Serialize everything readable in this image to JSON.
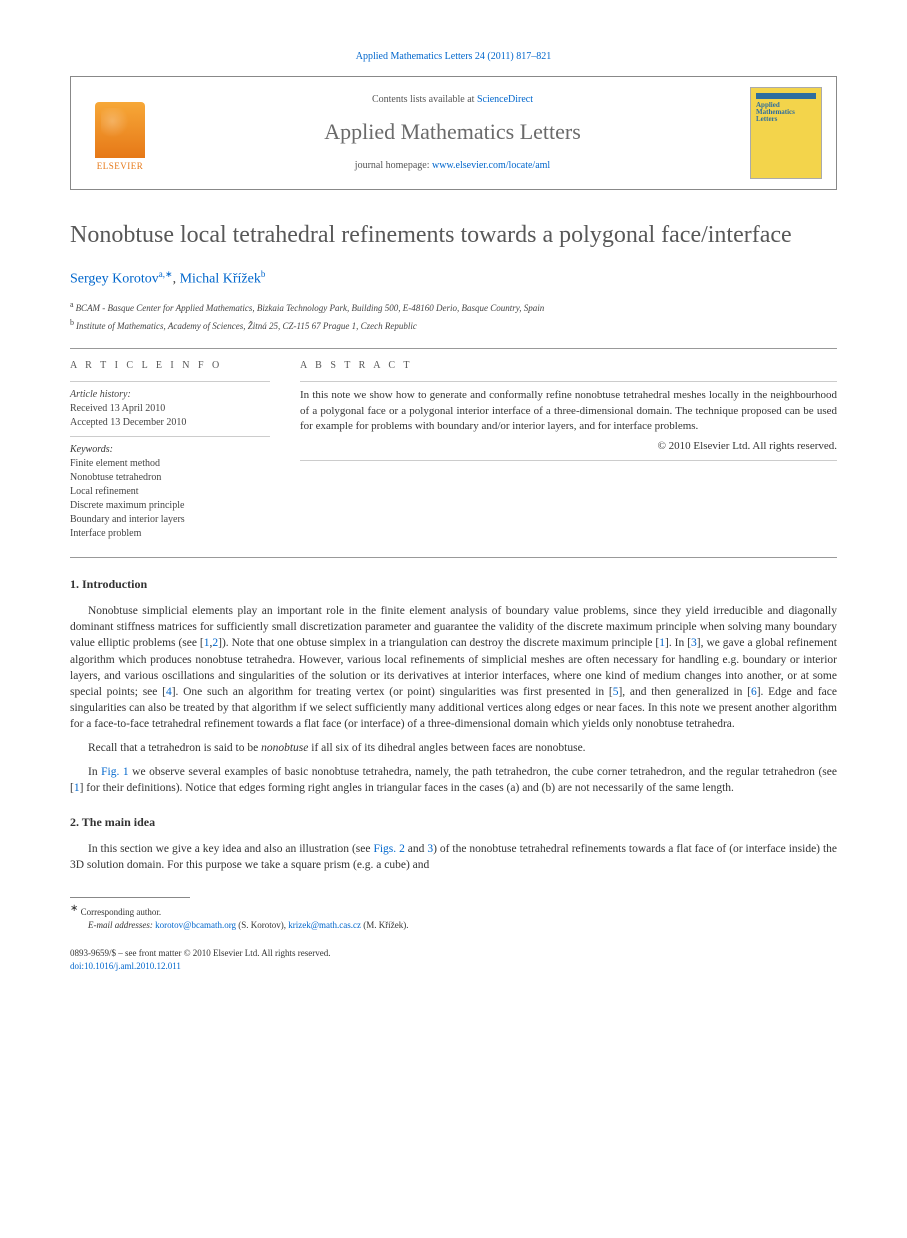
{
  "journal_ref": "Applied Mathematics Letters 24 (2011) 817–821",
  "header": {
    "publisher": "ELSEVIER",
    "contents_prefix": "Contents lists available at ",
    "contents_link": "ScienceDirect",
    "journal_name": "Applied Mathematics Letters",
    "homepage_prefix": "journal homepage: ",
    "homepage_url": "www.elsevier.com/locate/aml",
    "cover_title": "Applied Mathematics Letters"
  },
  "title": "Nonobtuse local tetrahedral refinements towards a polygonal face/interface",
  "authors": {
    "a1_name": "Sergey Korotov",
    "a1_sup": "a,∗",
    "sep": ", ",
    "a2_name": "Michal Křížek",
    "a2_sup": "b"
  },
  "affiliations": {
    "a_sup": "a",
    "a_text": "BCAM - Basque Center for Applied Mathematics, Bizkaia Technology Park, Building 500, E-48160 Derio, Basque Country, Spain",
    "b_sup": "b",
    "b_text": "Institute of Mathematics, Academy of Sciences, Žitná 25, CZ-115 67 Prague 1, Czech Republic"
  },
  "article_info": {
    "label": "A R T I C L E   I N F O",
    "history_label": "Article history:",
    "received": "Received 13 April 2010",
    "accepted": "Accepted 13 December 2010",
    "keywords_label": "Keywords:",
    "kw1": "Finite element method",
    "kw2": "Nonobtuse tetrahedron",
    "kw3": "Local refinement",
    "kw4": "Discrete maximum principle",
    "kw5": "Boundary and interior layers",
    "kw6": "Interface problem"
  },
  "abstract": {
    "label": "A B S T R A C T",
    "text": "In this note we show how to generate and conformally refine nonobtuse tetrahedral meshes locally in the neighbourhood of a polygonal face or a polygonal interior interface of a three-dimensional domain. The technique proposed can be used for example for problems with boundary and/or interior layers, and for interface problems.",
    "copyright": "© 2010 Elsevier Ltd. All rights reserved."
  },
  "sections": {
    "s1_heading": "1.  Introduction",
    "s1_p1a": "Nonobtuse simplicial elements play an important role in the finite element analysis of boundary value problems, since they yield irreducible and diagonally dominant stiffness matrices for sufficiently small discretization parameter and guarantee the validity of the discrete maximum principle when solving many boundary value elliptic problems (see [",
    "s1_p1_r1": "1",
    "s1_p1_comma": ",",
    "s1_p1_r2": "2",
    "s1_p1b": "]). Note that one obtuse simplex in a triangulation can destroy the discrete maximum principle [",
    "s1_p1_r1b": "1",
    "s1_p1c": "]. In [",
    "s1_p1_r3": "3",
    "s1_p1d": "], we gave a global refinement algorithm which produces nonobtuse tetrahedra. However, various local refinements of simplicial meshes are often necessary for handling e.g. boundary or interior layers, and various oscillations and singularities of the solution or its derivatives at interior interfaces, where one kind of medium changes into another, or at some special points; see [",
    "s1_p1_r4": "4",
    "s1_p1e": "]. One such an algorithm for treating vertex (or point) singularities was first presented in [",
    "s1_p1_r5": "5",
    "s1_p1f": "], and then generalized in [",
    "s1_p1_r6": "6",
    "s1_p1g": "]. Edge and face singularities can also be treated by that algorithm if we select sufficiently many additional vertices along edges or near faces. In this note we present another algorithm for a face-to-face tetrahedral refinement towards a flat face (or interface) of a three-dimensional domain which yields only nonobtuse tetrahedra.",
    "s1_p2a": "Recall that a tetrahedron is said to be ",
    "s1_p2_em": "nonobtuse",
    "s1_p2b": " if all six of its dihedral angles between faces are nonobtuse.",
    "s1_p3a": "In ",
    "s1_p3_fig": "Fig. 1",
    "s1_p3b": " we observe several examples of basic nonobtuse tetrahedra, namely, the path tetrahedron, the cube corner tetrahedron, and the regular tetrahedron (see [",
    "s1_p3_r1": "1",
    "s1_p3c": "] for their definitions). Notice that edges forming right angles in triangular faces in the cases (a) and (b) are not necessarily of the same length.",
    "s2_heading": "2.  The main idea",
    "s2_p1a": "In this section we give a key idea and also an illustration (see ",
    "s2_p1_fig2": "Figs. 2",
    "s2_p1_and": " and ",
    "s2_p1_fig3": "3",
    "s2_p1b": ") of the nonobtuse tetrahedral refinements towards a flat face of (or interface inside) the 3D solution domain. For this purpose we take a square prism (e.g. a cube) and"
  },
  "footnote": {
    "star": "∗",
    "corr": "Corresponding author.",
    "email_label": "E-mail addresses:",
    "email1": "korotov@bcamath.org",
    "name1": " (S. Korotov), ",
    "email2": "krizek@math.cas.cz",
    "name2": " (M. Křížek)."
  },
  "footer": {
    "issn": "0893-9659/$ – see front matter © 2010 Elsevier Ltd. All rights reserved.",
    "doi_label": "doi:",
    "doi": "10.1016/j.aml.2010.12.011"
  }
}
